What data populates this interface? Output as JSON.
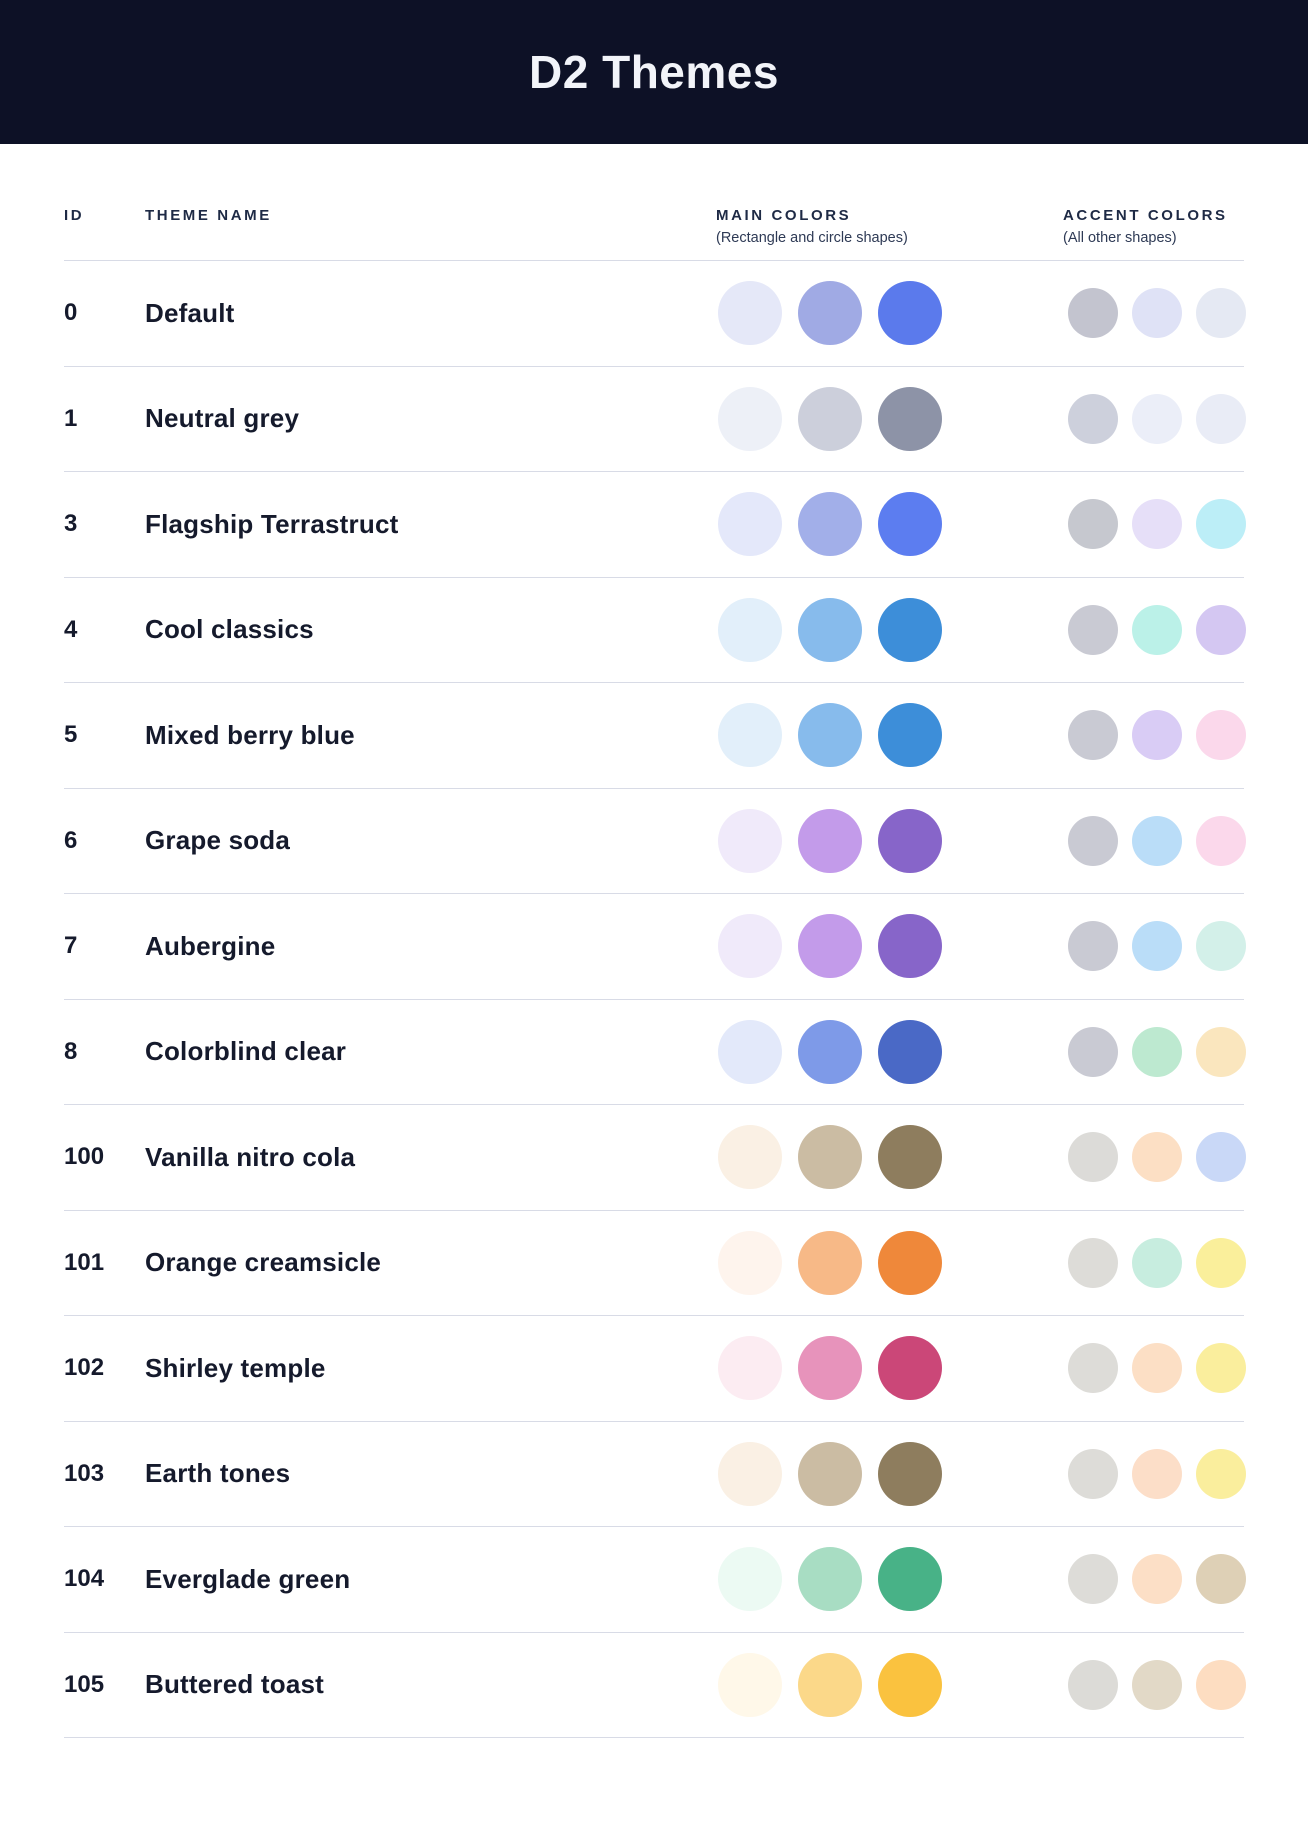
{
  "header": {
    "title": "D2 Themes",
    "background_color": "#0D1126",
    "title_color": "#F2F4F9"
  },
  "table": {
    "columns": {
      "id_label": "ID",
      "name_label": "THEME NAME",
      "main_label": "MAIN COLORS",
      "main_sub": "(Rectangle and circle shapes)",
      "accent_label": "ACCENT COLORS",
      "accent_sub": "(All other shapes)"
    },
    "separator_color": "#D8DBE6",
    "rows": [
      {
        "id": "0",
        "name": "Default",
        "main": [
          "#E5E8F8",
          "#A0AAE4",
          "#5B7AEC"
        ],
        "accent": [
          "#C3C4CF",
          "#DFE2F6",
          "#E5E9F3"
        ]
      },
      {
        "id": "1",
        "name": "Neutral grey",
        "main": [
          "#EDF0F7",
          "#CCCFDB",
          "#8D93A7"
        ],
        "accent": [
          "#CDD0DC",
          "#EBEEF8",
          "#E9ECF6"
        ]
      },
      {
        "id": "3",
        "name": "Flagship Terrastruct",
        "main": [
          "#E4E8FA",
          "#A2AFE9",
          "#5C7DF0"
        ],
        "accent": [
          "#C6C8CF",
          "#E6DFF8",
          "#BCEEF7"
        ]
      },
      {
        "id": "4",
        "name": "Cool classics",
        "main": [
          "#E2EFFA",
          "#87BBEC",
          "#3D8ED9"
        ],
        "accent": [
          "#C9CAD3",
          "#BBF1E8",
          "#D4C7F2"
        ]
      },
      {
        "id": "5",
        "name": "Mixed berry blue",
        "main": [
          "#E2EFFA",
          "#87BBEC",
          "#3D8ED9"
        ],
        "accent": [
          "#C9CAD3",
          "#D9CCF5",
          "#FBD8EB"
        ]
      },
      {
        "id": "6",
        "name": "Grape soda",
        "main": [
          "#F0EAFA",
          "#C39BEA",
          "#8765C9"
        ],
        "accent": [
          "#C9CAD3",
          "#BADDF8",
          "#FBD8EB"
        ]
      },
      {
        "id": "7",
        "name": "Aubergine",
        "main": [
          "#F0EAFA",
          "#C39BEA",
          "#8765C9"
        ],
        "accent": [
          "#C9CAD3",
          "#BADDF8",
          "#D3F0E9"
        ]
      },
      {
        "id": "8",
        "name": "Colorblind clear",
        "main": [
          "#E3E9FA",
          "#7E9AE8",
          "#4A69C6"
        ],
        "accent": [
          "#C9CAD3",
          "#BDE9D0",
          "#FAE6BE"
        ]
      },
      {
        "id": "100",
        "name": "Vanilla nitro cola",
        "main": [
          "#FAF0E4",
          "#CBBCA3",
          "#8E7D5E"
        ],
        "accent": [
          "#DCDBD8",
          "#FCDFC4",
          "#C9D8F7"
        ]
      },
      {
        "id": "101",
        "name": "Orange creamsicle",
        "main": [
          "#FEF4ED",
          "#F7B987",
          "#EF883A"
        ],
        "accent": [
          "#DDDCD8",
          "#C7EDDF",
          "#FAEF9B"
        ]
      },
      {
        "id": "102",
        "name": "Shirley temple",
        "main": [
          "#FCECF2",
          "#E793BB",
          "#CB4778"
        ],
        "accent": [
          "#DDDCD8",
          "#FCDFC5",
          "#FAEE9D"
        ]
      },
      {
        "id": "103",
        "name": "Earth tones",
        "main": [
          "#FAF0E4",
          "#CBBCA3",
          "#8E7D5E"
        ],
        "accent": [
          "#DDDCD8",
          "#FCDEC8",
          "#FAEE9D"
        ]
      },
      {
        "id": "104",
        "name": "Everglade green",
        "main": [
          "#ECFAF3",
          "#A8DDC3",
          "#48B287"
        ],
        "accent": [
          "#DDDCD8",
          "#FCDFC6",
          "#DED0B6"
        ]
      },
      {
        "id": "105",
        "name": "Buttered toast",
        "main": [
          "#FFF8E9",
          "#FBD889",
          "#FAC23F"
        ],
        "accent": [
          "#DCDBD7",
          "#E2D9C7",
          "#FDDDC1"
        ]
      }
    ]
  }
}
